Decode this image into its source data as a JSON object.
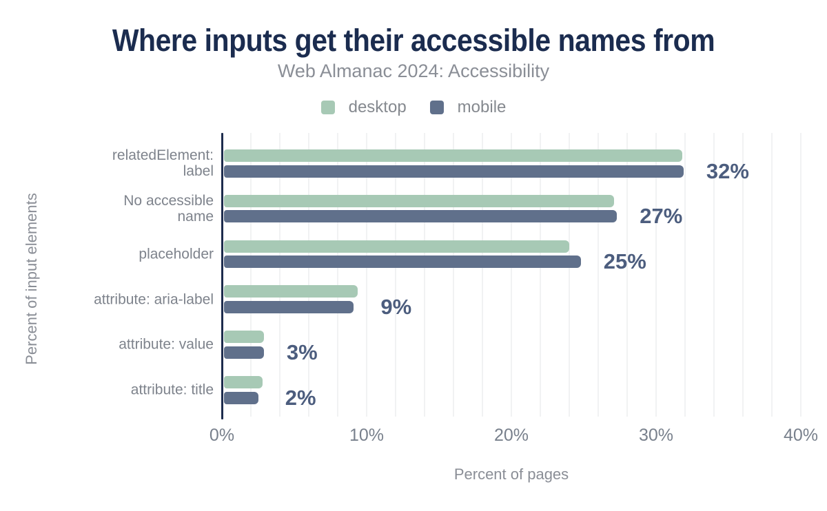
{
  "chart_data": {
    "type": "bar",
    "orientation": "horizontal",
    "title": "Where inputs get their accessible names from",
    "subtitle": "Web Almanac 2024: Accessibility",
    "xlabel": "Percent of pages",
    "ylabel": "Percent of input elements",
    "xlim": [
      0,
      40
    ],
    "grid": "on",
    "gridline_step_pct": 2,
    "legend_position": "top-center",
    "x_ticks": [
      {
        "value": 0,
        "label": "0%"
      },
      {
        "value": 10,
        "label": "10%"
      },
      {
        "value": 20,
        "label": "20%"
      },
      {
        "value": 30,
        "label": "30%"
      },
      {
        "value": 40,
        "label": "40%"
      }
    ],
    "legend": [
      {
        "name": "desktop",
        "color": "#a7c9b5"
      },
      {
        "name": "mobile",
        "color": "#60708b"
      }
    ],
    "categories": [
      "relatedElement: label",
      "No accessible name",
      "placeholder",
      "attribute: aria-label",
      "attribute: value",
      "attribute: title"
    ],
    "category_lines": [
      [
        "relatedElement:",
        "label"
      ],
      [
        "No accessible",
        "name"
      ],
      [
        "placeholder"
      ],
      [
        "attribute: aria-label"
      ],
      [
        "attribute: value"
      ],
      [
        "attribute: title"
      ]
    ],
    "series": [
      {
        "name": "desktop",
        "color": "#a7c9b5",
        "values": [
          31.8,
          27.1,
          24.0,
          9.4,
          2.9,
          2.8
        ]
      },
      {
        "name": "mobile",
        "color": "#60708b",
        "values": [
          31.9,
          27.3,
          24.8,
          9.1,
          2.9,
          2.5
        ]
      }
    ],
    "value_labels": [
      "32%",
      "27%",
      "25%",
      "9%",
      "3%",
      "2%"
    ]
  },
  "colors": {
    "background": "#ffffff",
    "title": "#1b2c4f",
    "subtitle": "#8a8e96",
    "legend_text": "#85898f",
    "axis_line": "#1d2c4d",
    "gridline": "#f1f2f3",
    "category_label": "#7e838c",
    "tick_label": "#78808c",
    "value_label": "#4c5d7e",
    "axis_title": "#8a8e96",
    "desktop": "#a7c9b5",
    "mobile": "#60708b"
  }
}
